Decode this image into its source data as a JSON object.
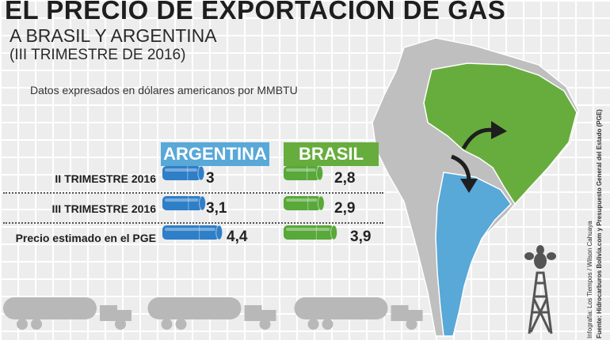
{
  "header": {
    "title": "EL PRECIO DE EXPORTACIÓN DE GAS",
    "subtitle": "A BRASIL Y ARGENTINA",
    "period": "(III TRIMESTRE DE 2016)",
    "note": "Datos expresados en dólares americanos por  MMBTU"
  },
  "colors": {
    "argentina": "#58a8d8",
    "brasil": "#67ad3e",
    "argentina_bar": "#2f7fc8",
    "brasil_bar": "#58a83a"
  },
  "chart_data": {
    "type": "bar",
    "unit": "MMBTU",
    "categories": [
      "II TRIMESTRE 2016",
      "III TRIMESTRE 2016",
      "Precio estimado en el PGE"
    ],
    "series": [
      {
        "name": "ARGENTINA",
        "values": [
          3,
          3.1,
          4.4
        ],
        "labels": [
          "3",
          "3,1",
          "4,4"
        ]
      },
      {
        "name": "BRASIL",
        "values": [
          2.8,
          2.9,
          3.9
        ],
        "labels": [
          "2,8",
          "2,9",
          "3,9"
        ]
      }
    ]
  },
  "credits": {
    "line1": "Infografía: Los Tiempos / Wilson Cahuaya",
    "line2": "Fuente: Hidrocarburos Bolivia.com y Presupuesto General del Estado (PGE)"
  }
}
